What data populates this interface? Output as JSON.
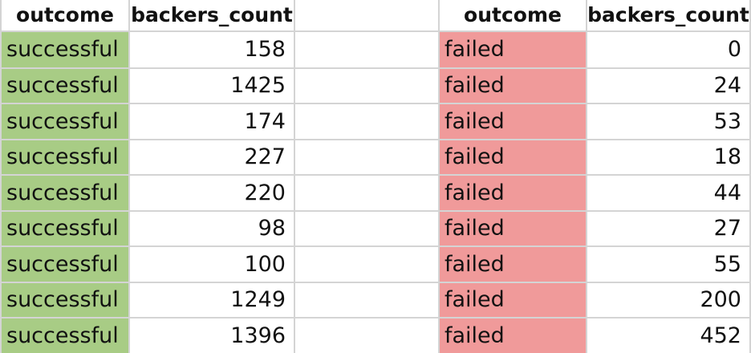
{
  "left_table": {
    "headers": [
      "outcome",
      "backers_count"
    ],
    "rows": [
      [
        "successful",
        "158"
      ],
      [
        "successful",
        "1425"
      ],
      [
        "successful",
        "174"
      ],
      [
        "successful",
        "227"
      ],
      [
        "successful",
        "220"
      ],
      [
        "successful",
        "98"
      ],
      [
        "successful",
        "100"
      ],
      [
        "successful",
        "1249"
      ],
      [
        "successful",
        "1396"
      ]
    ],
    "highlight_color": "#a8cc85"
  },
  "right_table": {
    "headers": [
      "outcome",
      "backers_count"
    ],
    "rows": [
      [
        "failed",
        "0"
      ],
      [
        "failed",
        "24"
      ],
      [
        "failed",
        "53"
      ],
      [
        "failed",
        "18"
      ],
      [
        "failed",
        "44"
      ],
      [
        "failed",
        "27"
      ],
      [
        "failed",
        "55"
      ],
      [
        "failed",
        "200"
      ],
      [
        "failed",
        "452"
      ]
    ],
    "highlight_color": "#f09a9a"
  }
}
